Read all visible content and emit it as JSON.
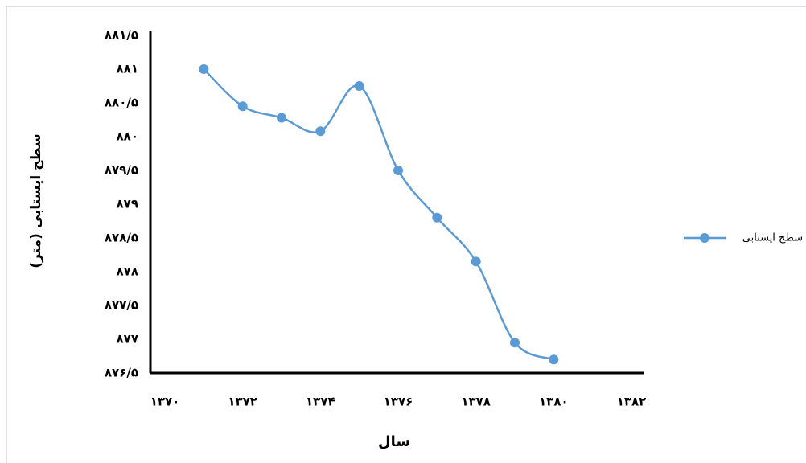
{
  "chart_data": {
    "type": "line",
    "y_label": "سطح ایستابی (متر)",
    "x_label": "سال",
    "x": [
      1371,
      1372,
      1373,
      1374,
      1375,
      1376,
      1377,
      1378,
      1379,
      1380
    ],
    "series": [
      {
        "name": "سطح ایستابی",
        "color": "#5b9bd5",
        "values": [
          881.0,
          880.45,
          880.28,
          880.08,
          880.75,
          879.5,
          878.8,
          878.15,
          876.95,
          876.7
        ]
      }
    ],
    "xlim": [
      1370,
      1382
    ],
    "xticks": [
      {
        "value": 1370,
        "label": "۱۳۷۰"
      },
      {
        "value": 1372,
        "label": "۱۳۷۲"
      },
      {
        "value": 1374,
        "label": "۱۳۷۴"
      },
      {
        "value": 1376,
        "label": "۱۳۷۶"
      },
      {
        "value": 1378,
        "label": "۱۳۷۸"
      },
      {
        "value": 1380,
        "label": "۱۳۸۰"
      },
      {
        "value": 1382,
        "label": "۱۳۸۲"
      }
    ],
    "ylim": [
      876.5,
      881.5
    ],
    "yticks": [
      {
        "value": 876.5,
        "label": "۸۷۶/۵"
      },
      {
        "value": 877,
        "label": "۸۷۷"
      },
      {
        "value": 877.5,
        "label": "۸۷۷/۵"
      },
      {
        "value": 878,
        "label": "۸۷۸"
      },
      {
        "value": 878.5,
        "label": "۸۷۸/۵"
      },
      {
        "value": 879,
        "label": "۸۷۹"
      },
      {
        "value": 879.5,
        "label": "۸۷۹/۵"
      },
      {
        "value": 880,
        "label": "۸۸۰"
      },
      {
        "value": 880.5,
        "label": "۸۸۰/۵"
      },
      {
        "value": 881,
        "label": "۸۸۱"
      },
      {
        "value": 881.5,
        "label": "۸۸۱/۵"
      }
    ],
    "grid": false,
    "legend": "right"
  }
}
